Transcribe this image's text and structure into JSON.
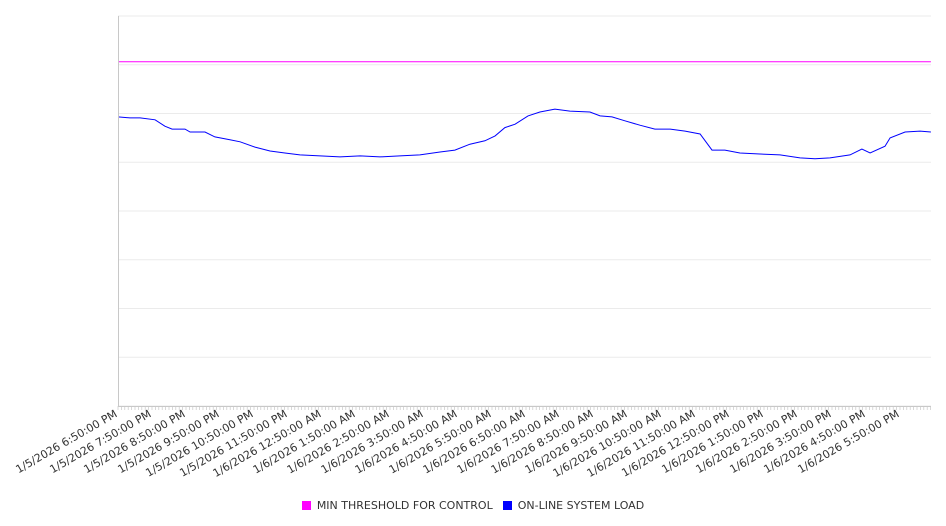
{
  "chart_data": {
    "type": "line",
    "title": "",
    "xlabel": "",
    "ylabel": "",
    "x_unit": "hours since 1/5/2026 6:50:00 PM",
    "xlim": [
      0,
      23.91
    ],
    "ylim": [
      0,
      8
    ],
    "grid": true,
    "legend_position": "bottom",
    "x_tick_labels": [
      "1/5/2026 6:50:00 PM",
      "1/5/2026 7:50:00 PM",
      "1/5/2026 8:50:00 PM",
      "1/5/2026 9:50:00 PM",
      "1/5/2026 10:50:00 PM",
      "1/5/2026 11:50:00 PM",
      "1/6/2026 12:50:00 AM",
      "1/6/2026 1:50:00 AM",
      "1/6/2026 2:50:00 AM",
      "1/6/2026 3:50:00 AM",
      "1/6/2026 4:50:00 AM",
      "1/6/2026 5:50:00 AM",
      "1/6/2026 6:50:00 AM",
      "1/6/2026 7:50:00 AM",
      "1/6/2026 8:50:00 AM",
      "1/6/2026 9:50:00 AM",
      "1/6/2026 10:50:00 AM",
      "1/6/2026 11:50:00 AM",
      "1/6/2026 12:50:00 PM",
      "1/6/2026 1:50:00 PM",
      "1/6/2026 2:50:00 PM",
      "1/6/2026 3:50:00 PM",
      "1/6/2026 4:50:00 PM",
      "1/6/2026 5:50:00 PM"
    ],
    "series": [
      {
        "name": "MIN THRESHOLD FOR CONTROL",
        "color": "#ff00ff",
        "x": [
          0,
          23.91
        ],
        "y": [
          7.06,
          7.06
        ]
      },
      {
        "name": "ON-LINE SYSTEM LOAD",
        "color": "#0000ff",
        "x": [
          0,
          0.35,
          0.65,
          1.09,
          1.38,
          1.59,
          1.97,
          2.12,
          2.56,
          2.85,
          3.29,
          3.59,
          4.03,
          4.47,
          4.91,
          5.35,
          5.94,
          6.53,
          7.12,
          7.71,
          8.29,
          8.88,
          9.47,
          9.91,
          10.35,
          10.79,
          11.09,
          11.38,
          11.68,
          12.06,
          12.41,
          12.85,
          13.29,
          13.88,
          14.18,
          14.53,
          14.91,
          15.35,
          15.79,
          16.24,
          16.68,
          17.12,
          17.47,
          17.85,
          18.29,
          18.88,
          19.47,
          20.06,
          20.5,
          20.94,
          21.53,
          21.88,
          22.12,
          22.56,
          22.71,
          23.15,
          23.59,
          23.91
        ],
        "y": [
          5.93,
          5.91,
          5.91,
          5.87,
          5.74,
          5.68,
          5.68,
          5.62,
          5.62,
          5.52,
          5.46,
          5.42,
          5.31,
          5.23,
          5.19,
          5.15,
          5.13,
          5.11,
          5.13,
          5.11,
          5.13,
          5.15,
          5.21,
          5.25,
          5.37,
          5.44,
          5.54,
          5.71,
          5.78,
          5.95,
          6.03,
          6.09,
          6.05,
          6.03,
          5.95,
          5.93,
          5.85,
          5.76,
          5.68,
          5.68,
          5.64,
          5.58,
          5.25,
          5.25,
          5.19,
          5.17,
          5.15,
          5.09,
          5.07,
          5.09,
          5.15,
          5.27,
          5.19,
          5.33,
          5.5,
          5.62,
          5.64,
          5.62
        ]
      }
    ]
  }
}
